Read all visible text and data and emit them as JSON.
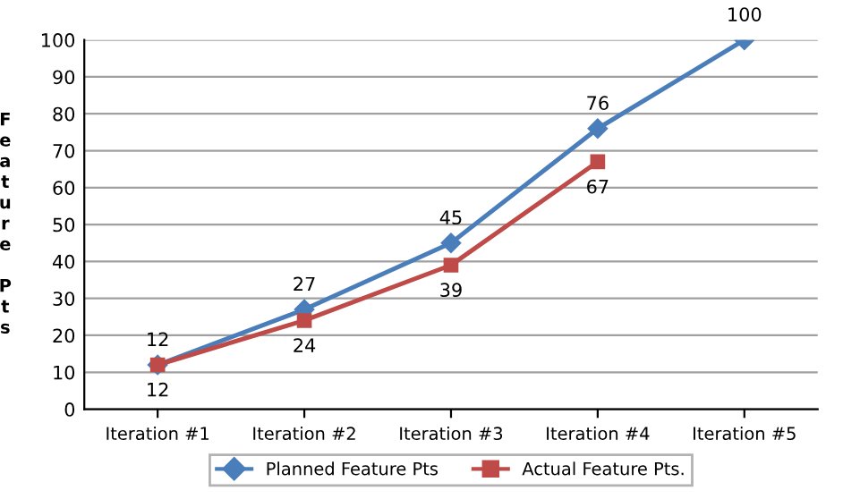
{
  "chart_data": {
    "type": "line",
    "ylabel": "Feature Pts",
    "categories": [
      "Iteration #1",
      "Iteration #2",
      "Iteration #3",
      "Iteration #4",
      "Iteration #5"
    ],
    "series": [
      {
        "name": "Planned Feature Pts",
        "color": "#4a7ebb",
        "marker": "diamond",
        "values": [
          12,
          27,
          45,
          76,
          100
        ]
      },
      {
        "name": "Actual Feature Pts.",
        "color": "#be4b48",
        "marker": "square",
        "values": [
          12,
          24,
          39,
          67,
          null
        ]
      }
    ],
    "ylim": [
      0,
      100
    ],
    "yticks": [
      0,
      10,
      20,
      30,
      40,
      50,
      60,
      70,
      80,
      90,
      100
    ],
    "grid": "y",
    "legend": "bottom",
    "data_labels": true,
    "line_style": "solid"
  }
}
